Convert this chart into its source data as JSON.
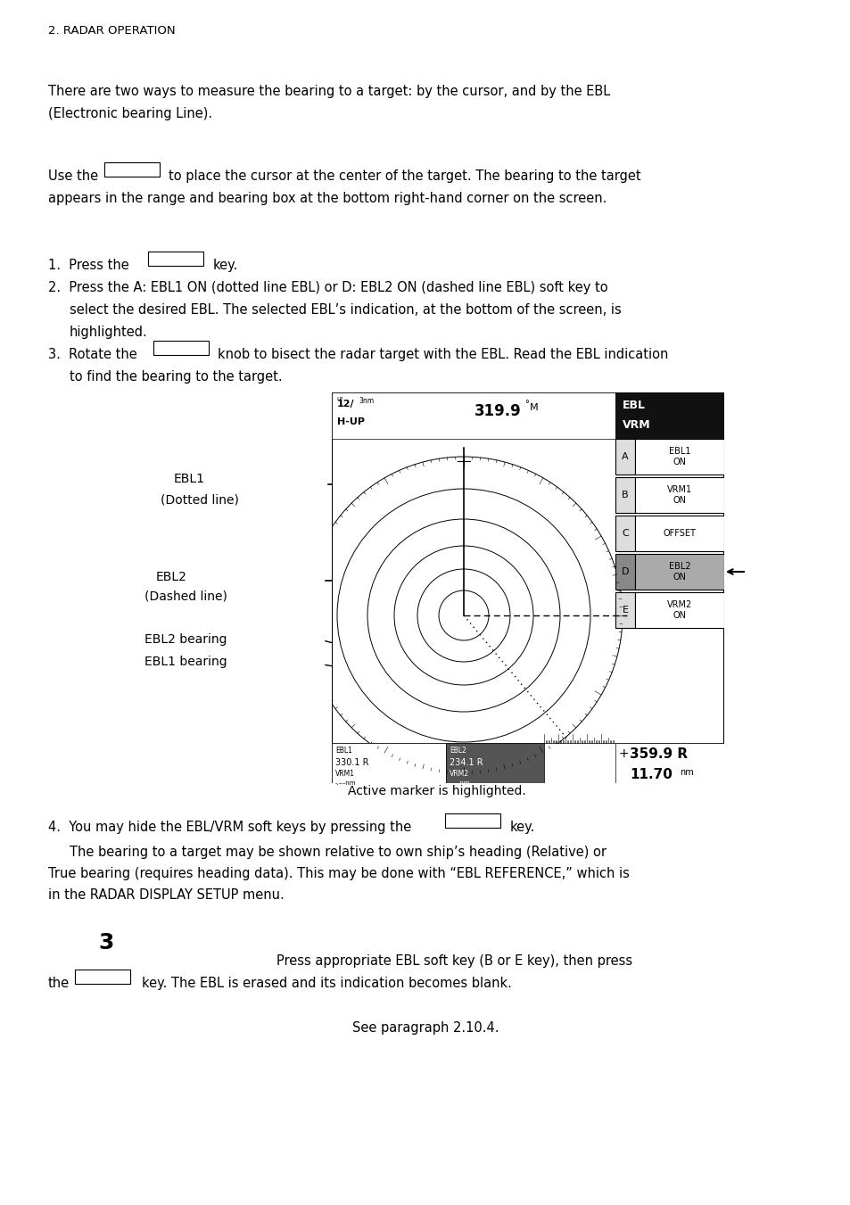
{
  "page_header": "2. RADAR OPERATION",
  "para1": "There are two ways to measure the bearing to a target: by the cursor, and by the EBL\n(Electronic bearing Line).",
  "para2_prefix": "Use the",
  "para2_suffix": "to place the cursor at the center of the target. The bearing to the target\nappears in the range and bearing box at the bottom right-hand corner on the screen.",
  "list_item2": "Press the A: EBL1 ON (dotted line EBL) or D: EBL2 ON (dashed line EBL) soft key to\nselect the desired EBL. The selected EBL’s indication, at the bottom of the screen, is\nhighlighted.",
  "list_item3_suffix": "knob to bisect the radar target with the EBL. Read the EBL indication\nto find the bearing to the target.",
  "active_marker_text": "Active marker is highlighted.",
  "item4_prefix": "4.  You may hide the EBL/VRM soft keys by pressing the",
  "item4_suffix": "key.",
  "item4_para": "     The bearing to a target may be shown relative to own ship’s heading (Relative) or\nTrue bearing (requires heading data). This may be done with “EBL REFERENCE,” which is\nin the RADAR DISPLAY SETUP menu.",
  "section3_num": "3",
  "section3_line1": "Press appropriate EBL soft key (B or E key), then press",
  "section3_line2_pre": "the",
  "section3_line2_suf": "key. The EBL is erased and its indication becomes blank.",
  "see_para": "See paragraph 2.10.4.",
  "bg_color": "#ffffff",
  "text_color": "#000000",
  "body_font_size": 10.5,
  "header_font_size": 9.5
}
